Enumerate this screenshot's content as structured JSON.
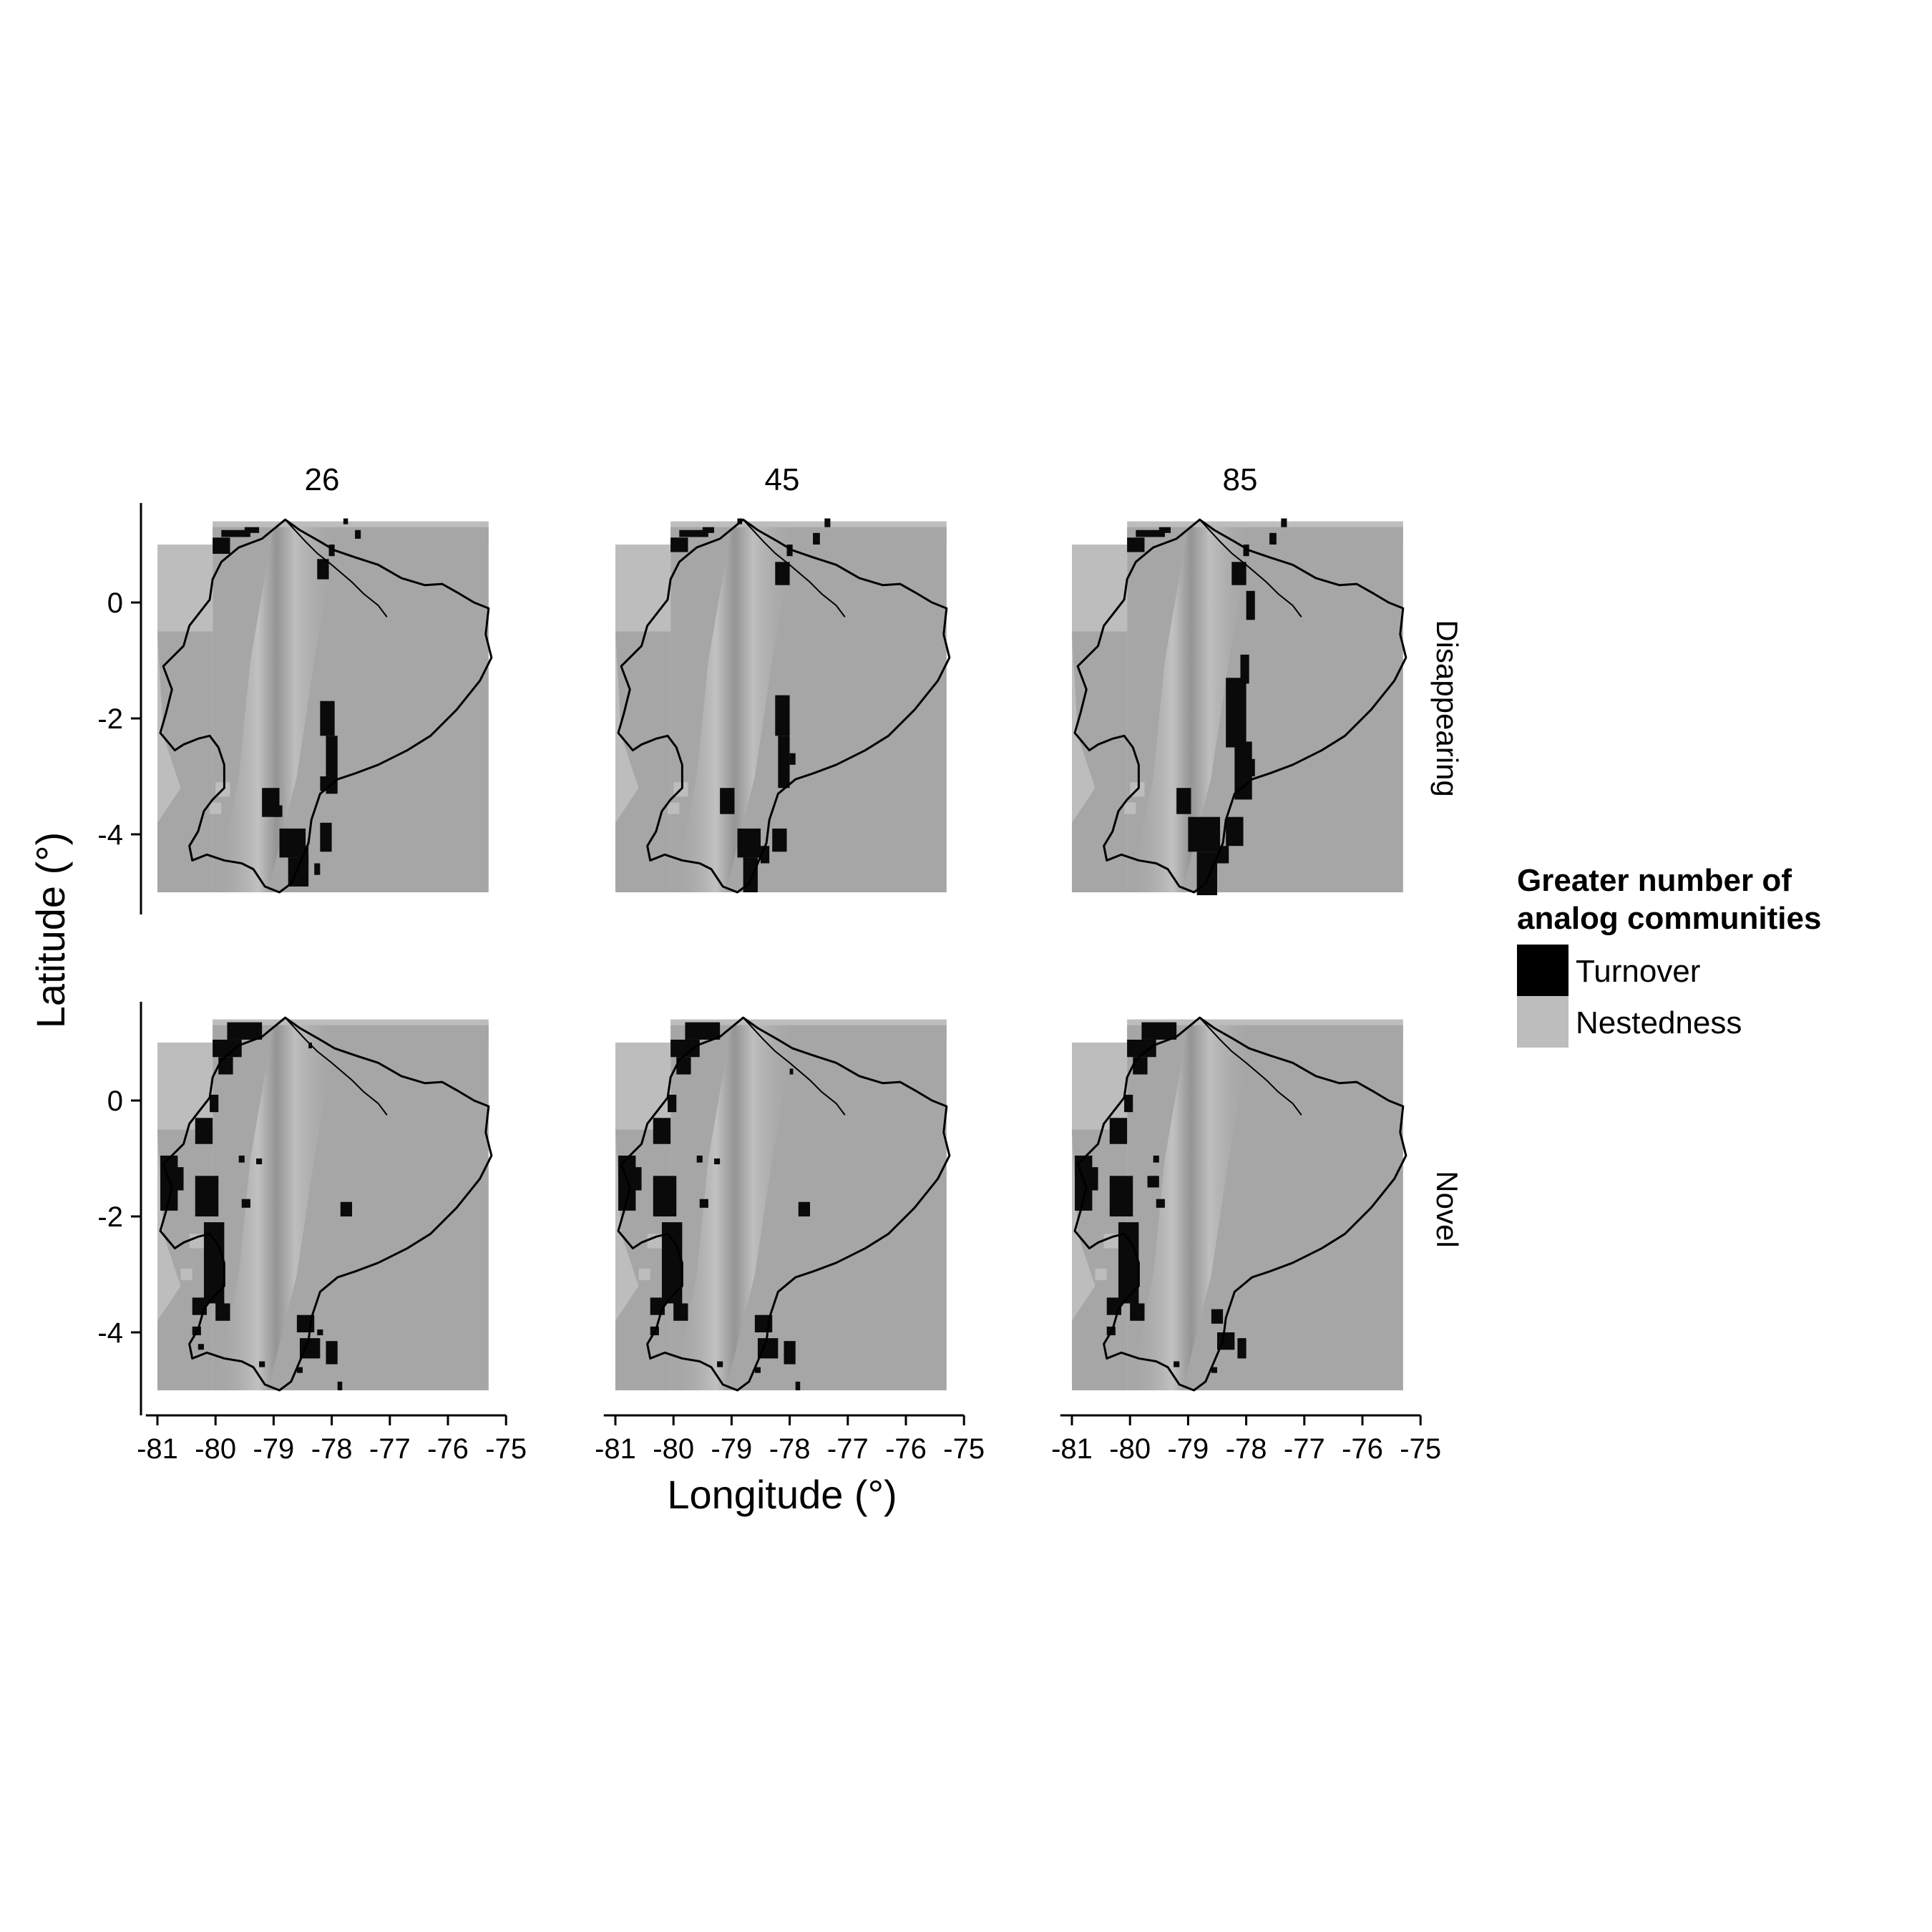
{
  "chart_data": {
    "type": "heatmap",
    "xlabel": "Longitude (°)",
    "ylabel": "Latitude (°)",
    "columns": [
      "26",
      "45",
      "85"
    ],
    "rows": [
      "Disappearing",
      "Novel"
    ],
    "xlim": [
      -81.2,
      -75.2
    ],
    "ylim": [
      -5.2,
      1.8
    ],
    "x_ticks": [
      -81,
      -80,
      -79,
      -78,
      -77,
      -76,
      -75
    ],
    "x_tick_labels": [
      "-81",
      "-80",
      "-79",
      "-78",
      "-77",
      "-76",
      "-75"
    ],
    "y_ticks": [
      0,
      -2,
      -4
    ],
    "y_tick_labels": [
      "0",
      "-2",
      "-4"
    ],
    "grid": false,
    "legend": {
      "title_line1": "Greater number of",
      "title_line2": "analog communities",
      "position": "right",
      "items": [
        {
          "label": "Turnover",
          "color": "#000000"
        },
        {
          "label": "Nestedness",
          "color": "#bdbdbd"
        }
      ]
    },
    "colors": {
      "turnover": "#0a0a0a",
      "nestedness": "#bdbdbd",
      "terrain": "#a6a6a6",
      "background": "#ffffff"
    },
    "outline": {
      "ecuador_lonlat": [
        [
          -78.8,
          1.43
        ],
        [
          -78.55,
          1.25
        ],
        [
          -78.2,
          1.05
        ],
        [
          -77.95,
          0.9
        ],
        [
          -77.6,
          0.78
        ],
        [
          -77.2,
          0.65
        ],
        [
          -76.8,
          0.42
        ],
        [
          -76.4,
          0.3
        ],
        [
          -76.1,
          0.32
        ],
        [
          -75.8,
          0.15
        ],
        [
          -75.55,
          0.0
        ],
        [
          -75.3,
          -0.1
        ],
        [
          -75.35,
          -0.55
        ],
        [
          -75.25,
          -0.95
        ],
        [
          -75.45,
          -1.35
        ],
        [
          -75.85,
          -1.85
        ],
        [
          -76.3,
          -2.3
        ],
        [
          -76.7,
          -2.55
        ],
        [
          -77.2,
          -2.8
        ],
        [
          -77.6,
          -2.95
        ],
        [
          -77.9,
          -3.05
        ],
        [
          -78.2,
          -3.3
        ],
        [
          -78.35,
          -3.75
        ],
        [
          -78.4,
          -4.15
        ],
        [
          -78.55,
          -4.5
        ],
        [
          -78.7,
          -4.85
        ],
        [
          -78.9,
          -5.0
        ],
        [
          -79.15,
          -4.9
        ],
        [
          -79.35,
          -4.6
        ],
        [
          -79.55,
          -4.5
        ],
        [
          -79.85,
          -4.45
        ],
        [
          -80.15,
          -4.35
        ],
        [
          -80.4,
          -4.45
        ],
        [
          -80.45,
          -4.2
        ],
        [
          -80.3,
          -3.95
        ],
        [
          -80.2,
          -3.6
        ],
        [
          -80.05,
          -3.4
        ],
        [
          -79.85,
          -3.2
        ],
        [
          -79.85,
          -2.8
        ],
        [
          -79.95,
          -2.5
        ],
        [
          -80.1,
          -2.3
        ],
        [
          -80.3,
          -2.35
        ],
        [
          -80.55,
          -2.45
        ],
        [
          -80.7,
          -2.55
        ],
        [
          -80.95,
          -2.25
        ],
        [
          -80.85,
          -1.9
        ],
        [
          -80.75,
          -1.5
        ],
        [
          -80.9,
          -1.1
        ],
        [
          -80.55,
          -0.75
        ],
        [
          -80.45,
          -0.4
        ],
        [
          -80.1,
          0.05
        ],
        [
          -80.05,
          0.4
        ],
        [
          -79.9,
          0.7
        ],
        [
          -79.6,
          0.95
        ],
        [
          -79.2,
          1.1
        ],
        [
          -78.8,
          1.43
        ]
      ],
      "colombia_border_lonlat": [
        [
          -78.8,
          1.43
        ],
        [
          -78.45,
          1.05
        ],
        [
          -78.25,
          0.85
        ],
        [
          -78.0,
          0.65
        ],
        [
          -77.65,
          0.35
        ],
        [
          -77.45,
          0.15
        ],
        [
          -77.2,
          -0.05
        ],
        [
          -77.05,
          -0.25
        ]
      ]
    },
    "panels": [
      {
        "row": "Disappearing",
        "column": "26",
        "turnover_rects_deg": [
          [
            -79.9,
            1.25,
            0.5,
            0.12
          ],
          [
            -80.05,
            1.12,
            0.3,
            0.28
          ],
          [
            -79.5,
            1.3,
            0.25,
            0.1
          ],
          [
            -78.25,
            0.75,
            0.2,
            0.35
          ],
          [
            -78.05,
            1.0,
            0.1,
            0.2
          ],
          [
            -77.6,
            1.25,
            0.1,
            0.15
          ],
          [
            -77.8,
            1.45,
            0.08,
            0.1
          ],
          [
            -78.2,
            -1.7,
            0.25,
            0.6
          ],
          [
            -78.1,
            -2.3,
            0.2,
            1.0
          ],
          [
            -78.2,
            -3.0,
            0.15,
            0.25
          ],
          [
            -79.2,
            -3.2,
            0.3,
            0.5
          ],
          [
            -79.0,
            -3.5,
            0.15,
            0.2
          ],
          [
            -78.9,
            -3.9,
            0.45,
            0.5
          ],
          [
            -78.75,
            -4.4,
            0.35,
            0.5
          ],
          [
            -78.2,
            -3.8,
            0.2,
            0.5
          ],
          [
            -78.55,
            -4.2,
            0.15,
            0.35
          ],
          [
            -78.3,
            -4.5,
            0.1,
            0.2
          ]
        ],
        "nestedness_rects_deg": [
          [
            -80.0,
            -3.1,
            0.25,
            0.25
          ],
          [
            -80.1,
            -3.45,
            0.2,
            0.2
          ]
        ]
      },
      {
        "row": "Disappearing",
        "column": "45",
        "turnover_rects_deg": [
          [
            -79.9,
            1.25,
            0.5,
            0.12
          ],
          [
            -80.05,
            1.12,
            0.3,
            0.25
          ],
          [
            -79.5,
            1.3,
            0.2,
            0.1
          ],
          [
            -78.25,
            0.7,
            0.25,
            0.4
          ],
          [
            -78.05,
            1.0,
            0.1,
            0.2
          ],
          [
            -77.6,
            1.2,
            0.12,
            0.2
          ],
          [
            -77.4,
            1.45,
            0.1,
            0.15
          ],
          [
            -78.9,
            1.45,
            0.08,
            0.1
          ],
          [
            -78.25,
            -1.6,
            0.25,
            0.7
          ],
          [
            -78.2,
            -2.3,
            0.2,
            0.9
          ],
          [
            -78.0,
            -2.6,
            0.1,
            0.2
          ],
          [
            -79.2,
            -3.2,
            0.25,
            0.45
          ],
          [
            -78.9,
            -3.9,
            0.4,
            0.5
          ],
          [
            -78.8,
            -4.4,
            0.25,
            0.6
          ],
          [
            -78.3,
            -3.9,
            0.25,
            0.4
          ],
          [
            -78.5,
            -4.2,
            0.15,
            0.3
          ]
        ],
        "nestedness_rects_deg": [
          [
            -80.0,
            -3.1,
            0.25,
            0.25
          ],
          [
            -80.1,
            -3.45,
            0.2,
            0.2
          ]
        ]
      },
      {
        "row": "Disappearing",
        "column": "85",
        "turnover_rects_deg": [
          [
            -79.9,
            1.25,
            0.5,
            0.12
          ],
          [
            -80.05,
            1.12,
            0.3,
            0.25
          ],
          [
            -79.5,
            1.3,
            0.2,
            0.1
          ],
          [
            -78.25,
            0.7,
            0.25,
            0.4
          ],
          [
            -78.05,
            1.0,
            0.1,
            0.2
          ],
          [
            -77.6,
            1.2,
            0.12,
            0.2
          ],
          [
            -77.4,
            1.45,
            0.1,
            0.15
          ],
          [
            -78.0,
            0.2,
            0.15,
            0.5
          ],
          [
            -78.1,
            -0.9,
            0.15,
            0.5
          ],
          [
            -78.35,
            -1.3,
            0.35,
            1.2
          ],
          [
            -78.2,
            -2.4,
            0.3,
            1.0
          ],
          [
            -78.0,
            -2.7,
            0.15,
            0.3
          ],
          [
            -79.2,
            -3.2,
            0.25,
            0.45
          ],
          [
            -79.0,
            -3.7,
            0.55,
            0.6
          ],
          [
            -78.85,
            -4.3,
            0.35,
            0.75
          ],
          [
            -78.35,
            -3.7,
            0.3,
            0.5
          ],
          [
            -78.5,
            -4.2,
            0.2,
            0.3
          ]
        ],
        "nestedness_rects_deg": [
          [
            -80.0,
            -3.1,
            0.25,
            0.25
          ],
          [
            -80.1,
            -3.45,
            0.2,
            0.2
          ]
        ]
      },
      {
        "row": "Novel",
        "column": "26",
        "turnover_rects_deg": [
          [
            -79.8,
            1.35,
            0.6,
            0.3
          ],
          [
            -80.05,
            1.05,
            0.5,
            0.3
          ],
          [
            -79.95,
            0.75,
            0.25,
            0.3
          ],
          [
            -80.35,
            -0.3,
            0.3,
            0.45
          ],
          [
            -80.1,
            0.1,
            0.15,
            0.3
          ],
          [
            -80.95,
            -0.95,
            0.3,
            0.95
          ],
          [
            -80.75,
            -1.15,
            0.2,
            0.4
          ],
          [
            -80.35,
            -1.3,
            0.4,
            0.7
          ],
          [
            -80.2,
            -2.1,
            0.35,
            1.4
          ],
          [
            -80.0,
            -3.5,
            0.25,
            0.3
          ],
          [
            -80.4,
            -3.4,
            0.25,
            0.3
          ],
          [
            -79.6,
            -0.95,
            0.1,
            0.12
          ],
          [
            -79.3,
            -1.0,
            0.1,
            0.1
          ],
          [
            -79.55,
            -1.7,
            0.15,
            0.15
          ],
          [
            -77.85,
            -1.75,
            0.2,
            0.25
          ],
          [
            -78.25,
            -3.95,
            0.1,
            0.1
          ],
          [
            -78.6,
            -3.7,
            0.3,
            0.3
          ],
          [
            -78.55,
            -4.1,
            0.35,
            0.35
          ],
          [
            -78.1,
            -4.15,
            0.2,
            0.4
          ],
          [
            -80.4,
            -3.9,
            0.15,
            0.15
          ],
          [
            -80.3,
            -4.2,
            0.1,
            0.1
          ],
          [
            -78.6,
            -4.6,
            0.1,
            0.1
          ],
          [
            -79.25,
            -4.5,
            0.1,
            0.1
          ],
          [
            -77.9,
            -4.85,
            0.08,
            0.15
          ],
          [
            -78.4,
            1.0,
            0.06,
            0.1
          ]
        ],
        "nestedness_rects_deg": [
          [
            -80.45,
            -2.3,
            0.3,
            0.25
          ],
          [
            -80.6,
            -2.9,
            0.2,
            0.2
          ]
        ]
      },
      {
        "row": "Novel",
        "column": "45",
        "turnover_rects_deg": [
          [
            -79.8,
            1.35,
            0.6,
            0.3
          ],
          [
            -80.05,
            1.05,
            0.5,
            0.3
          ],
          [
            -79.95,
            0.75,
            0.25,
            0.3
          ],
          [
            -80.35,
            -0.3,
            0.3,
            0.45
          ],
          [
            -80.1,
            0.1,
            0.15,
            0.3
          ],
          [
            -80.95,
            -0.95,
            0.3,
            0.95
          ],
          [
            -80.75,
            -1.15,
            0.2,
            0.4
          ],
          [
            -80.35,
            -1.3,
            0.4,
            0.7
          ],
          [
            -80.2,
            -2.1,
            0.35,
            1.4
          ],
          [
            -80.0,
            -3.5,
            0.25,
            0.3
          ],
          [
            -80.4,
            -3.4,
            0.25,
            0.3
          ],
          [
            -79.6,
            -0.95,
            0.1,
            0.12
          ],
          [
            -79.3,
            -1.0,
            0.1,
            0.1
          ],
          [
            -79.55,
            -1.7,
            0.15,
            0.15
          ],
          [
            -77.85,
            -1.75,
            0.2,
            0.25
          ],
          [
            -78.6,
            -3.7,
            0.3,
            0.3
          ],
          [
            -78.55,
            -4.1,
            0.35,
            0.35
          ],
          [
            -78.1,
            -4.15,
            0.2,
            0.4
          ],
          [
            -80.4,
            -3.9,
            0.15,
            0.15
          ],
          [
            -78.6,
            -4.6,
            0.1,
            0.1
          ],
          [
            -79.25,
            -4.5,
            0.1,
            0.1
          ],
          [
            -77.9,
            -4.85,
            0.08,
            0.15
          ],
          [
            -78.0,
            0.55,
            0.06,
            0.1
          ]
        ],
        "nestedness_rects_deg": [
          [
            -80.45,
            -2.3,
            0.3,
            0.25
          ],
          [
            -80.6,
            -2.9,
            0.2,
            0.2
          ]
        ]
      },
      {
        "row": "Novel",
        "column": "85",
        "turnover_rects_deg": [
          [
            -79.8,
            1.35,
            0.6,
            0.3
          ],
          [
            -80.05,
            1.05,
            0.5,
            0.3
          ],
          [
            -79.95,
            0.75,
            0.25,
            0.3
          ],
          [
            -80.35,
            -0.3,
            0.3,
            0.45
          ],
          [
            -80.1,
            0.1,
            0.15,
            0.3
          ],
          [
            -80.95,
            -0.95,
            0.3,
            0.95
          ],
          [
            -80.75,
            -1.15,
            0.2,
            0.4
          ],
          [
            -80.35,
            -1.3,
            0.4,
            0.7
          ],
          [
            -80.2,
            -2.1,
            0.35,
            1.4
          ],
          [
            -80.0,
            -3.5,
            0.25,
            0.3
          ],
          [
            -80.4,
            -3.4,
            0.25,
            0.3
          ],
          [
            -79.6,
            -0.95,
            0.1,
            0.12
          ],
          [
            -79.7,
            -1.3,
            0.2,
            0.2
          ],
          [
            -79.55,
            -1.7,
            0.15,
            0.15
          ],
          [
            -78.6,
            -3.6,
            0.2,
            0.25
          ],
          [
            -78.5,
            -4.0,
            0.3,
            0.3
          ],
          [
            -78.15,
            -4.1,
            0.15,
            0.35
          ],
          [
            -80.4,
            -3.9,
            0.15,
            0.15
          ],
          [
            -78.6,
            -4.6,
            0.1,
            0.1
          ],
          [
            -79.25,
            -4.5,
            0.1,
            0.1
          ]
        ],
        "nestedness_rects_deg": [
          [
            -80.45,
            -2.3,
            0.3,
            0.25
          ],
          [
            -80.6,
            -2.9,
            0.2,
            0.2
          ]
        ]
      }
    ]
  }
}
